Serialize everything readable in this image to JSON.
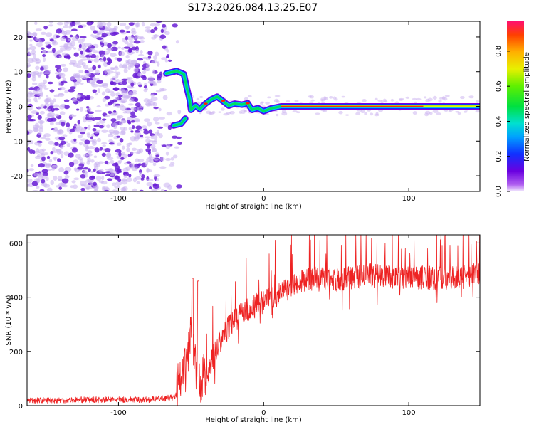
{
  "title": "S173.2026.084.13.25.E07",
  "colors": {
    "line": "#ee2222",
    "scatter": "#6a1fd6",
    "scatter_light": "#c9b0f0"
  },
  "chart_data": [
    {
      "type": "heatmap",
      "name": "spectrogram",
      "xlabel": "Height of straight line (km)",
      "ylabel": "Frequency (Hz)",
      "xlim": [
        -163,
        149
      ],
      "ylim": [
        -24.5,
        24.5
      ],
      "x_ticks": [
        -100,
        0,
        100
      ],
      "y_ticks": [
        -20,
        -10,
        0,
        10,
        20
      ],
      "colorbar": {
        "label": "Normalized spectral amplitude",
        "range": [
          0.0,
          0.97
        ],
        "ticks": [
          0.0,
          0.2,
          0.4,
          0.6,
          0.8
        ],
        "tick_labels": [
          "0.0",
          "0.2",
          "0.4",
          "0.6",
          "0.8"
        ]
      },
      "noise_region": {
        "x": [
          -163,
          -65
        ],
        "y": [
          -24.5,
          24.5
        ],
        "amplitude": 0.05
      },
      "ridge": [
        {
          "x": -67,
          "f": 9.5
        },
        {
          "x": -60,
          "f": 10.2
        },
        {
          "x": -55,
          "f": 9.3
        },
        {
          "x": -53,
          "f": 5.5
        },
        {
          "x": -51,
          "f": 2.0
        },
        {
          "x": -50,
          "f": -1.0
        },
        {
          "x": -47,
          "f": 0.2
        },
        {
          "x": -44,
          "f": -0.8
        },
        {
          "x": -40,
          "f": 0.8
        },
        {
          "x": -36,
          "f": 2.0
        },
        {
          "x": -32,
          "f": 2.8
        },
        {
          "x": -28,
          "f": 1.5
        },
        {
          "x": -24,
          "f": 0.2
        },
        {
          "x": -20,
          "f": 0.8
        },
        {
          "x": -15,
          "f": 0.5
        },
        {
          "x": -11,
          "f": 0.9
        },
        {
          "x": -8,
          "f": -1.0
        },
        {
          "x": -4,
          "f": -0.5
        },
        {
          "x": 0,
          "f": -1.4
        },
        {
          "x": 5,
          "f": -0.6
        },
        {
          "x": 12,
          "f": 0.0
        },
        {
          "x": 149,
          "f": 0.0
        }
      ],
      "branch_low": [
        {
          "x": -62,
          "f": -5.5
        },
        {
          "x": -57,
          "f": -5.0
        },
        {
          "x": -54,
          "f": -3.5
        }
      ]
    },
    {
      "type": "line",
      "name": "snr",
      "xlabel": "Height of straight line (km)",
      "ylabel": "SNR (10 * v/v)",
      "xlim": [
        -163,
        149
      ],
      "ylim": [
        0,
        630
      ],
      "x_ticks": [
        -100,
        0,
        100
      ],
      "y_ticks": [
        0,
        200,
        400,
        600
      ],
      "series": [
        {
          "name": "SNR",
          "x": [
            -163,
            -140,
            -120,
            -100,
            -80,
            -62,
            -56,
            -53,
            -50,
            -48,
            -46,
            -44,
            -42,
            -40,
            -36,
            -32,
            -28,
            -20,
            -10,
            0,
            10,
            20,
            30,
            50,
            70,
            100,
            120,
            140,
            149
          ],
          "values": [
            20,
            20,
            22,
            22,
            22,
            30,
            60,
            130,
            260,
            150,
            80,
            60,
            70,
            90,
            160,
            220,
            260,
            320,
            360,
            380,
            410,
            440,
            470,
            460,
            480,
            475,
            470,
            475,
            490
          ],
          "peaks": [
            {
              "x": -49,
              "value": 470
            },
            {
              "x": -45,
              "value": 460
            },
            {
              "x": 33,
              "value": 625
            },
            {
              "x": 70,
              "value": 625
            },
            {
              "x": 100,
              "value": 600
            },
            {
              "x": 140,
              "value": 620
            }
          ]
        }
      ]
    }
  ]
}
